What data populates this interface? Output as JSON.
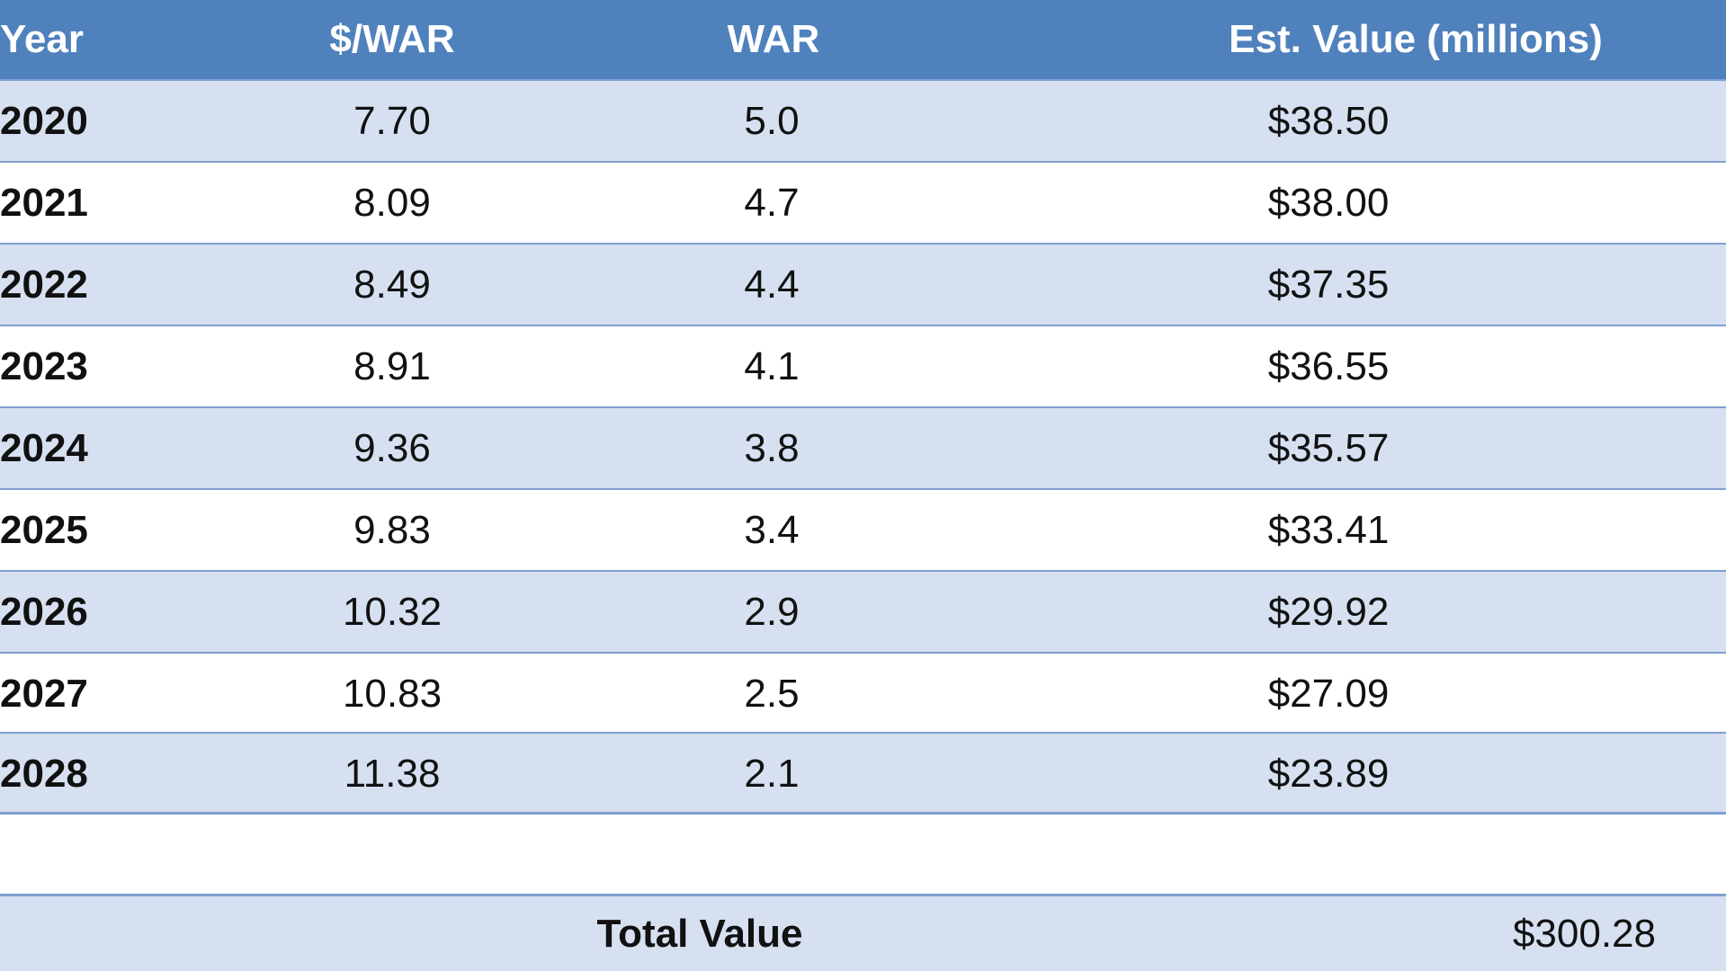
{
  "table": {
    "headers": {
      "year": "Year",
      "dollars_per_war": "$/WAR",
      "war": "WAR",
      "est_value": "Est. Value (millions)"
    },
    "rows": [
      {
        "year": "2020",
        "dollars_per_war": "7.70",
        "war": "5.0",
        "est_value": "$38.50"
      },
      {
        "year": "2021",
        "dollars_per_war": "8.09",
        "war": "4.7",
        "est_value": "$38.00"
      },
      {
        "year": "2022",
        "dollars_per_war": "8.49",
        "war": "4.4",
        "est_value": "$37.35"
      },
      {
        "year": "2023",
        "dollars_per_war": "8.91",
        "war": "4.1",
        "est_value": "$36.55"
      },
      {
        "year": "2024",
        "dollars_per_war": "9.36",
        "war": "3.8",
        "est_value": "$35.57"
      },
      {
        "year": "2025",
        "dollars_per_war": "9.83",
        "war": "3.4",
        "est_value": "$33.41"
      },
      {
        "year": "2026",
        "dollars_per_war": "10.32",
        "war": "2.9",
        "est_value": "$29.92"
      },
      {
        "year": "2027",
        "dollars_per_war": "10.83",
        "war": "2.5",
        "est_value": "$27.09"
      },
      {
        "year": "2028",
        "dollars_per_war": "11.38",
        "war": "2.1",
        "est_value": "$23.89"
      }
    ],
    "total": {
      "label": "Total Value",
      "value": "$300.28"
    }
  },
  "colors": {
    "header_bg": "#4f81bd",
    "band_bg": "#d6e0f0",
    "border": "#7f9fd0"
  }
}
